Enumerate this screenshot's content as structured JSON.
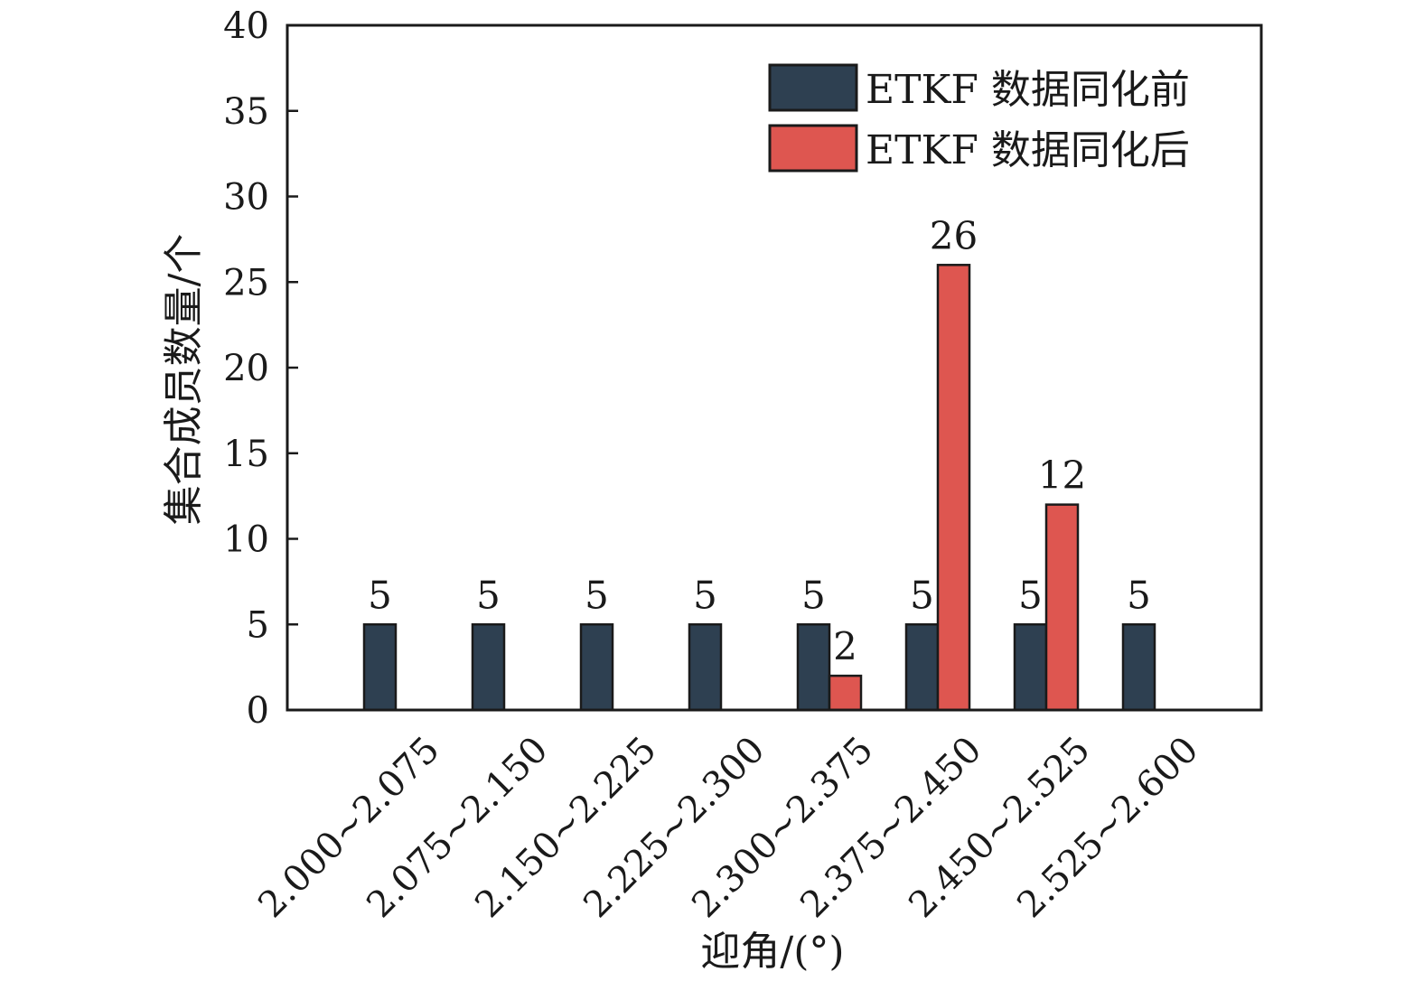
{
  "chart_data": {
    "type": "bar",
    "title": "",
    "xlabel": "迎角/(°)",
    "ylabel": "集合成员数量/个",
    "ylim": [
      0,
      40
    ],
    "yticks": [
      0,
      5,
      10,
      15,
      20,
      25,
      30,
      35,
      40
    ],
    "categories": [
      "2.000~2.075",
      "2.075~2.150",
      "2.150~2.225",
      "2.225~2.300",
      "2.300~2.375",
      "2.375~2.450",
      "2.450~2.525",
      "2.525~2.600"
    ],
    "series": [
      {
        "name": "ETKF 数据同化前",
        "color": "#2e4051",
        "values": [
          5,
          5,
          5,
          5,
          5,
          5,
          5,
          5
        ]
      },
      {
        "name": "ETKF 数据同化后",
        "color": "#de5650",
        "values": [
          0,
          0,
          0,
          0,
          2,
          26,
          12,
          0
        ]
      }
    ],
    "data_labels": {
      "series_0": [
        "5",
        "5",
        "5",
        "5",
        "5",
        "5",
        "5",
        "5"
      ],
      "series_1": [
        "",
        "",
        "",
        "",
        "2",
        "26",
        "12",
        ""
      ]
    },
    "legend_position": "top-right",
    "grid": false
  }
}
